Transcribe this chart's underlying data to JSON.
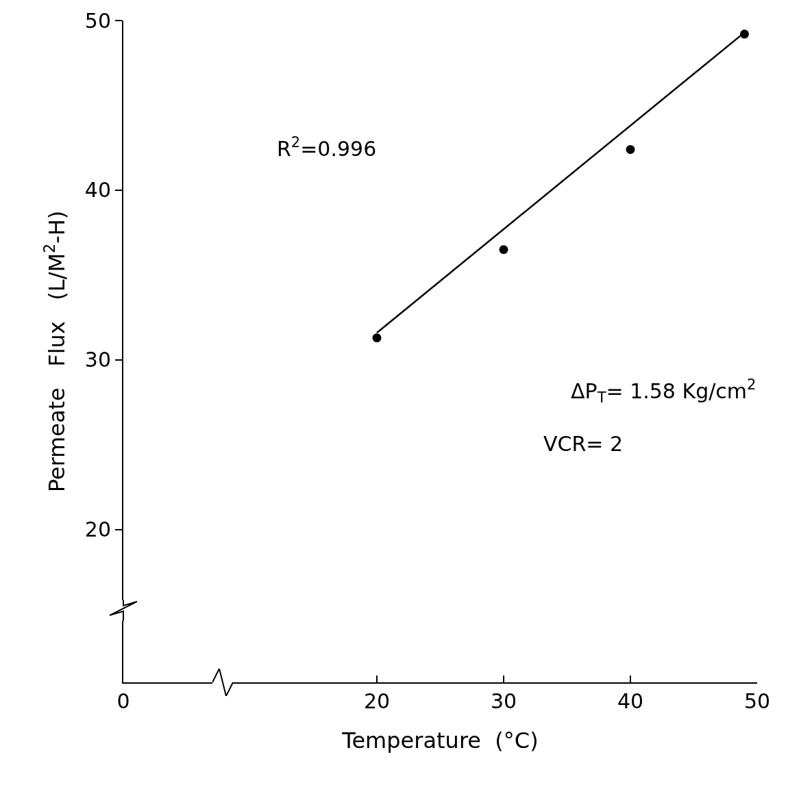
{
  "chart_data": {
    "type": "scatter",
    "xlabel": "Temperature  (°C)",
    "ylabel": "Permeate   Flux   (L/M$^{2}$-H)",
    "x": [
      20,
      30,
      40,
      49
    ],
    "series": [
      {
        "color": "#000000",
        "values": [
          31.3,
          36.5,
          42.4,
          49.2
        ]
      },
      {
        "type": "line",
        "color": "#000000",
        "marker": "none",
        "x": [
          20,
          49
        ],
        "values": [
          31.6,
          49.3
        ]
      }
    ],
    "annotations": [
      "R$^{2}$=0.996",
      "ΔP$_{T}$= 1.58 Kg/cm$^{2}$",
      "VCR= 2"
    ],
    "xlim": [
      0,
      50
    ],
    "xticks": [
      0,
      20,
      30,
      40,
      50
    ],
    "ylim": [
      11,
      50
    ],
    "yticks": [
      20,
      30,
      40,
      50
    ],
    "grid": false,
    "marker": "circle",
    "line_style": "solid"
  }
}
